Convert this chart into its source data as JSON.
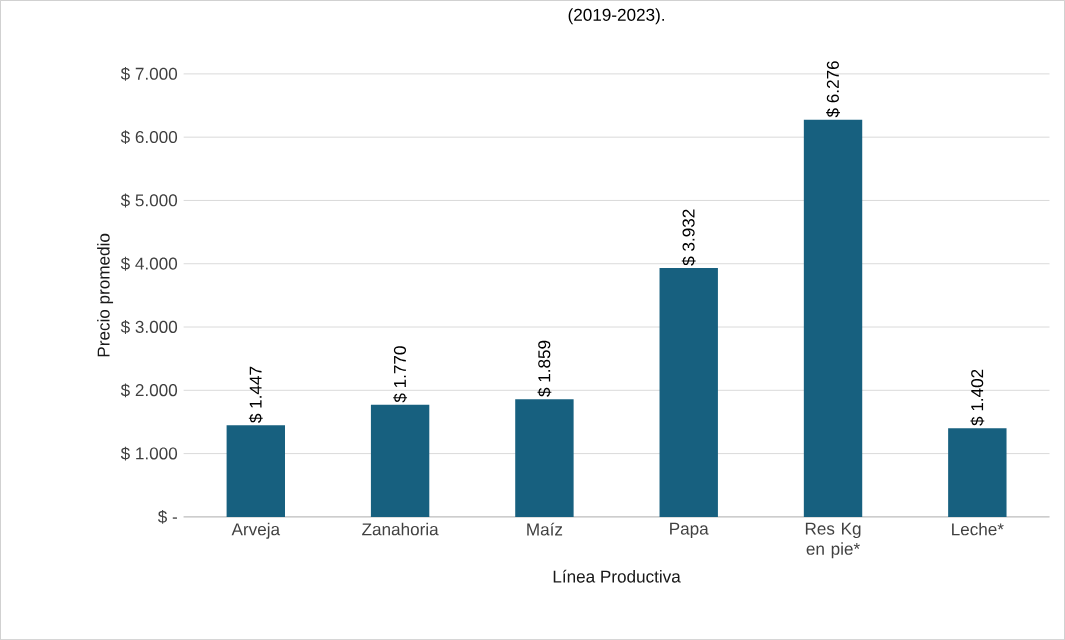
{
  "chart_data": {
    "type": "bar",
    "title": "(2019-2023).",
    "categories": [
      "Arveja",
      "Zanahoria",
      "Maíz",
      "Papa",
      "Res Kg en pie*",
      "Leche*"
    ],
    "values": [
      1447,
      1770,
      1859,
      3932,
      6276,
      1402
    ],
    "value_labels": [
      "$ 1.447",
      "$ 1.770",
      "$ 1.859",
      "$ 3.932",
      "$ 6.276",
      "$ 1.402"
    ],
    "color": "#17607f",
    "xlabel": "Línea Productiva",
    "ylabel": "Precio promedio",
    "ylim": [
      0,
      7000
    ],
    "yticks": [
      {
        "value": 0,
        "label": "$ -"
      },
      {
        "value": 1000,
        "label": "$ 1.000"
      },
      {
        "value": 2000,
        "label": "$ 2.000"
      },
      {
        "value": 3000,
        "label": "$ 3.000"
      },
      {
        "value": 4000,
        "label": "$ 4.000"
      },
      {
        "value": 5000,
        "label": "$ 5.000"
      },
      {
        "value": 6000,
        "label": "$ 6.000"
      },
      {
        "value": 7000,
        "label": "$ 7.000"
      }
    ],
    "grid": "y"
  }
}
